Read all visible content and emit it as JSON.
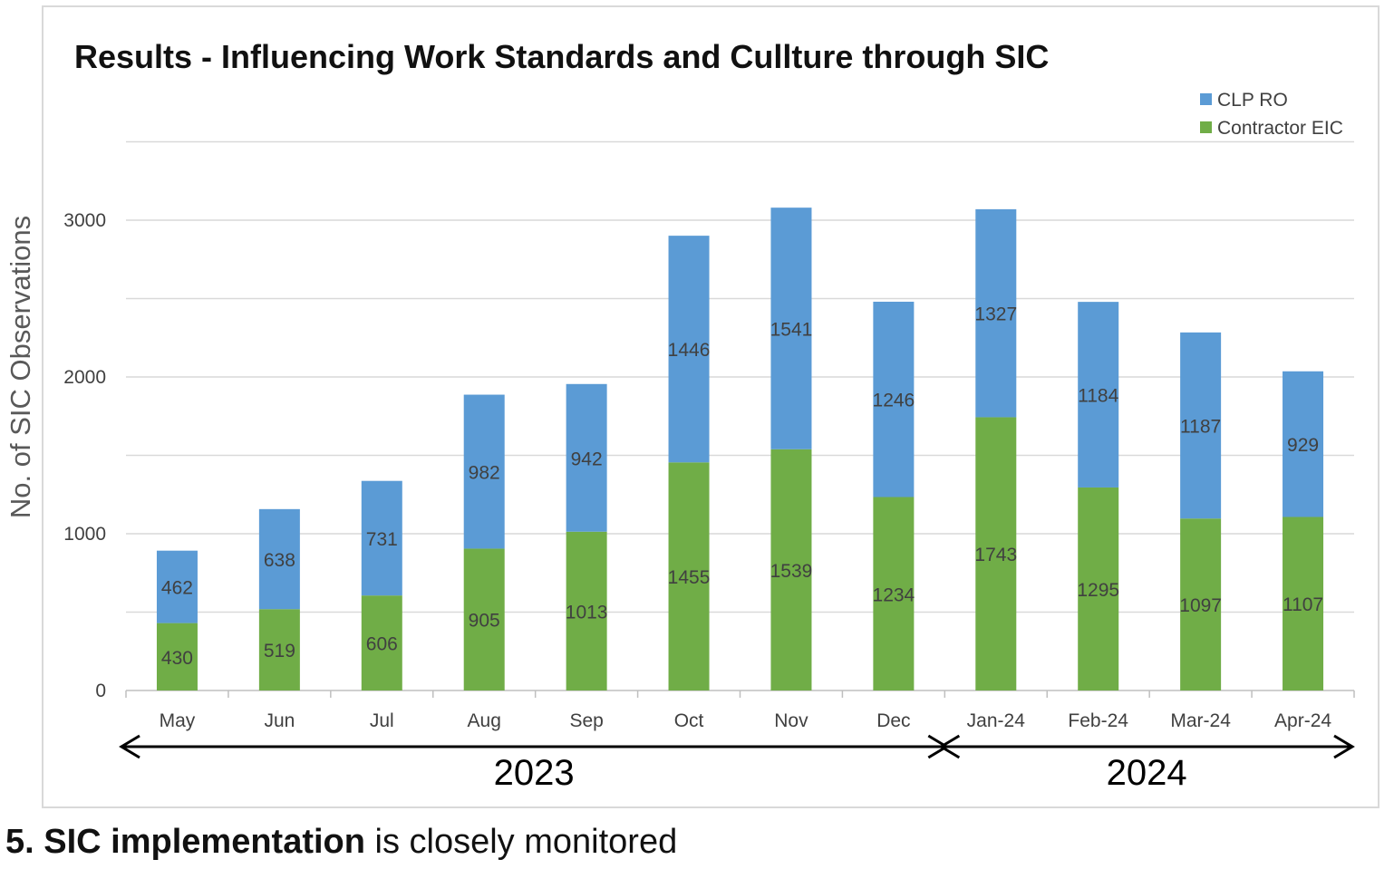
{
  "chart_data": {
    "type": "bar",
    "stacked": true,
    "title": "Results - Influencing Work Standards and Cullture through SIC",
    "ylabel": "No. of SIC Observations",
    "xlabel": "",
    "ylim": [
      0,
      3500
    ],
    "yticks": [
      0,
      1000,
      2000,
      3000
    ],
    "grid": true,
    "legend_position": "top-right",
    "categories": [
      "May",
      "Jun",
      "Jul",
      "Aug",
      "Sep",
      "Oct",
      "Nov",
      "Dec",
      "Jan-24",
      "Feb-24",
      "Mar-24",
      "Apr-24"
    ],
    "series": [
      {
        "name": "Contractor EIC",
        "color": "#70ad47",
        "values": [
          430,
          519,
          606,
          905,
          1013,
          1455,
          1539,
          1234,
          1743,
          1295,
          1097,
          1107
        ]
      },
      {
        "name": "CLP RO",
        "color": "#5b9bd5",
        "values": [
          462,
          638,
          731,
          982,
          942,
          1446,
          1541,
          1246,
          1327,
          1184,
          1187,
          929
        ]
      }
    ],
    "legend_order": [
      "CLP RO",
      "Contractor EIC"
    ],
    "year_groups": [
      {
        "label": "2023",
        "from": "May",
        "to": "Dec"
      },
      {
        "label": "2024",
        "from": "Jan-24",
        "to": "Apr-24"
      }
    ]
  },
  "caption": {
    "bold": "5. SIC implementation",
    "rest": " is closely monitored"
  }
}
